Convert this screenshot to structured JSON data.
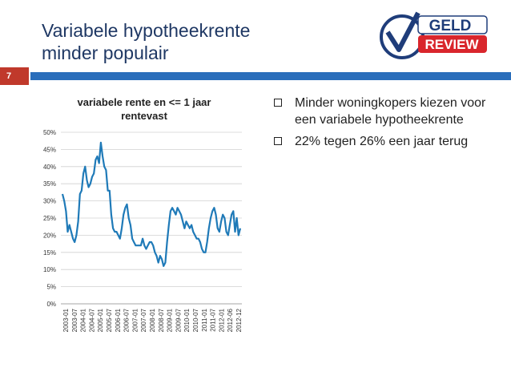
{
  "slide": {
    "title_line1": "Variabele hypotheekrente",
    "title_line2": "minder populair",
    "page_number": "7"
  },
  "logo": {
    "word1": "GELD",
    "word2": "REVIEW",
    "colors": {
      "red": "#d9262c",
      "blue": "#1f3d7a"
    }
  },
  "bullets": [
    {
      "text": "Minder woningkopers kiezen voor een variabele hypotheekrente"
    },
    {
      "text": "22% tegen 26% een jaar terug"
    }
  ],
  "chart_data": {
    "type": "line",
    "title": "variabele rente en <= 1 jaar rentevast",
    "xlabel": "",
    "ylabel": "",
    "ylim": [
      0,
      50
    ],
    "yticks": [
      "0%",
      "5%",
      "10%",
      "15%",
      "20%",
      "25%",
      "30%",
      "35%",
      "40%",
      "45%",
      "50%"
    ],
    "xticks": [
      "2003-01",
      "2003-07",
      "2004-01",
      "2004-07",
      "2005-01",
      "2005-07",
      "2006-01",
      "2006-07",
      "2007-01",
      "2007-07",
      "2008-01",
      "2008-07",
      "2009-01",
      "2009-07",
      "2010-01",
      "2010-07",
      "2011-01",
      "2011-07",
      "2012-01",
      "2012-06",
      "2012-12"
    ],
    "grid": true,
    "legend": "none",
    "line_color": "#1f7ab8",
    "series": [
      {
        "name": "",
        "values": [
          32,
          30,
          27,
          21,
          23,
          21,
          19,
          18,
          20,
          24,
          32,
          33,
          38,
          40,
          36,
          34,
          35,
          37,
          38,
          42,
          43,
          41,
          47,
          43,
          40,
          39,
          33,
          33,
          26,
          22,
          21,
          21,
          20,
          19,
          22,
          26,
          28,
          29,
          25,
          23,
          19,
          18,
          17,
          17,
          17,
          17,
          19,
          17,
          16,
          17,
          18,
          18,
          17,
          15,
          14,
          12,
          14,
          13,
          11,
          12,
          18,
          23,
          27,
          28,
          27,
          26,
          28,
          27,
          26,
          24,
          22,
          24,
          23,
          22,
          23,
          21,
          20,
          19,
          19,
          18,
          16,
          15,
          15,
          18,
          22,
          25,
          27,
          28,
          26,
          22,
          21,
          24,
          26,
          25,
          21,
          20,
          23,
          26,
          27,
          21,
          25,
          20,
          22
        ]
      }
    ]
  }
}
